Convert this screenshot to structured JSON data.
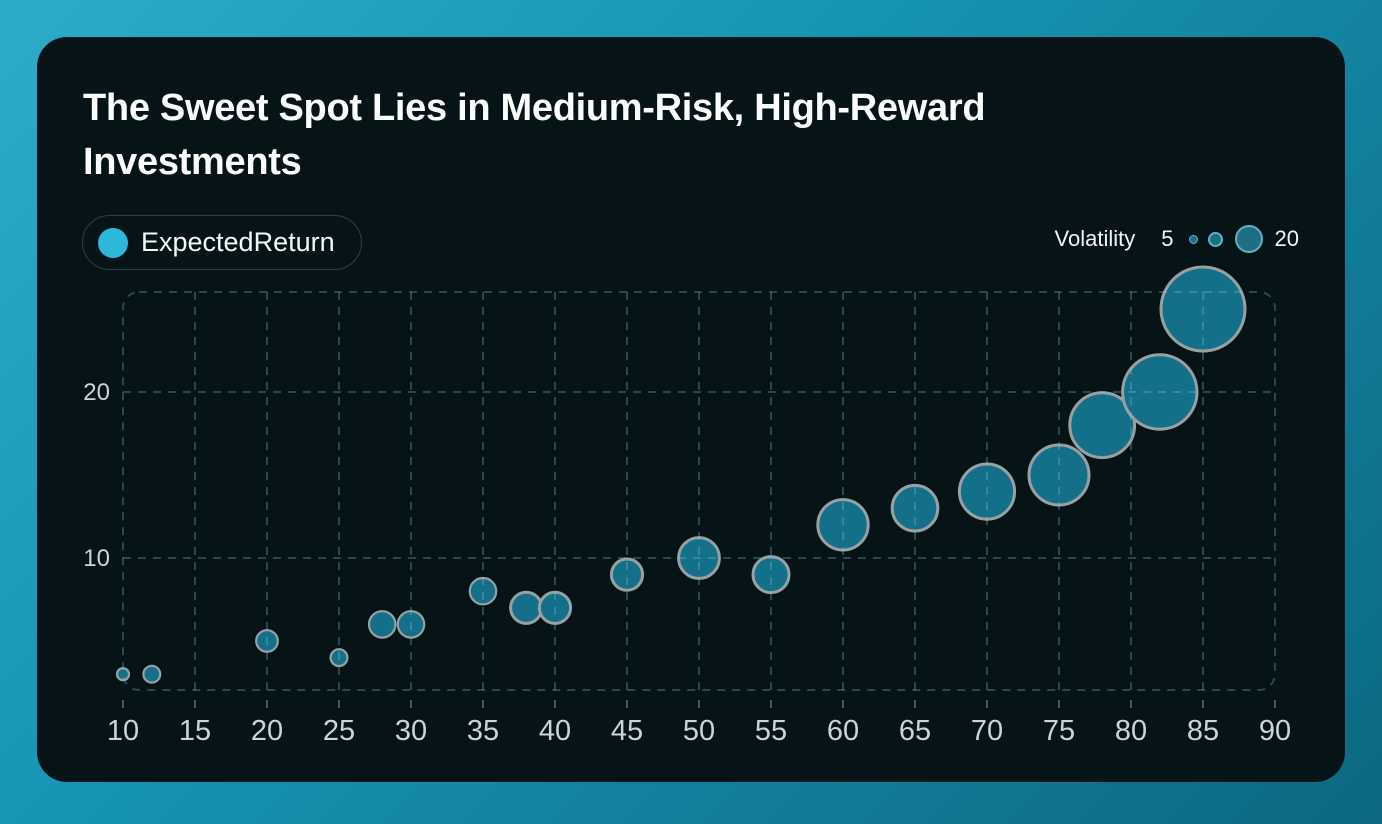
{
  "card": {
    "title": "The Sweet Spot Lies in Medium-Risk, High-Reward Investments"
  },
  "series_legend": {
    "label": "ExpectedReturn",
    "dot_color": "#2cb8d8"
  },
  "size_legend": {
    "label": "Volatility",
    "min_label": "5",
    "max_label": "20"
  },
  "colors": {
    "frame_gradient_start": "#2dabc9",
    "frame_gradient_end": "#0d6880",
    "card_background": "#061417",
    "title_text": "#fbfdfd",
    "axis_text": "#ccd4d6",
    "grid_line": "rgba(136,203,219,0.28)",
    "axis_tick": "#48585b",
    "bubble_fill": "#146f89",
    "bubble_stroke": "#97a1a3",
    "accent": "#2cb8d8"
  },
  "chart_data": {
    "type": "scatter",
    "title": "The Sweet Spot Lies in Medium-Risk, High-Reward Investments",
    "series_name": "ExpectedReturn",
    "size_field": "Volatility",
    "size_range": [
      5,
      20
    ],
    "xlabel": "",
    "ylabel": "",
    "xlim": [
      10,
      90
    ],
    "ylim": [
      2,
      26
    ],
    "x_ticks": [
      10,
      15,
      20,
      25,
      30,
      35,
      40,
      45,
      50,
      55,
      60,
      65,
      70,
      75,
      80,
      85,
      90
    ],
    "y_ticks": [
      10,
      20
    ],
    "grid": "dashed",
    "legend_position": "top-left",
    "points": [
      {
        "x": 10,
        "y": 3,
        "volatility": 5
      },
      {
        "x": 12,
        "y": 3,
        "volatility": 6
      },
      {
        "x": 20,
        "y": 5,
        "volatility": 7
      },
      {
        "x": 25,
        "y": 4,
        "volatility": 6
      },
      {
        "x": 28,
        "y": 6,
        "volatility": 8
      },
      {
        "x": 30,
        "y": 6,
        "volatility": 8
      },
      {
        "x": 35,
        "y": 8,
        "volatility": 8
      },
      {
        "x": 38,
        "y": 7,
        "volatility": 9
      },
      {
        "x": 40,
        "y": 7,
        "volatility": 9
      },
      {
        "x": 45,
        "y": 9,
        "volatility": 9
      },
      {
        "x": 50,
        "y": 10,
        "volatility": 11
      },
      {
        "x": 55,
        "y": 9,
        "volatility": 10
      },
      {
        "x": 60,
        "y": 12,
        "volatility": 13
      },
      {
        "x": 65,
        "y": 13,
        "volatility": 12
      },
      {
        "x": 70,
        "y": 14,
        "volatility": 14
      },
      {
        "x": 75,
        "y": 15,
        "volatility": 15
      },
      {
        "x": 78,
        "y": 18,
        "volatility": 16
      },
      {
        "x": 82,
        "y": 20,
        "volatility": 18
      },
      {
        "x": 85,
        "y": 25,
        "volatility": 20
      }
    ]
  }
}
